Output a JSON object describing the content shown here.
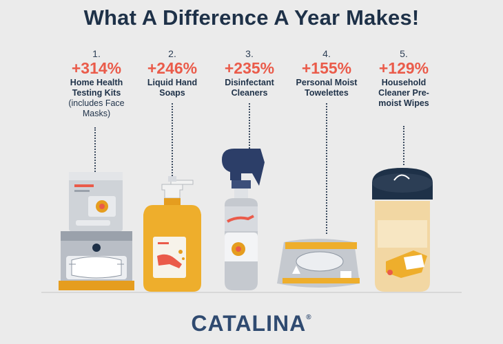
{
  "title": "What A Difference A Year Makes!",
  "items": [
    {
      "num": "1.",
      "pct": "+314%",
      "label": "Home Health Testing Kits",
      "sub": "(includes Face Masks)"
    },
    {
      "num": "2.",
      "pct": "+246%",
      "label": "Liquid Hand Soaps",
      "sub": ""
    },
    {
      "num": "3.",
      "pct": "+235%",
      "label": "Disinfectant Cleaners",
      "sub": ""
    },
    {
      "num": "4.",
      "pct": "+155%",
      "label": "Personal Moist Towelettes",
      "sub": ""
    },
    {
      "num": "5.",
      "pct": "+129%",
      "label": "Household Cleaner Pre-moist Wipes",
      "sub": ""
    }
  ],
  "brand": {
    "name": "CATALINA",
    "mark": "®"
  },
  "colors": {
    "accent": "#ea5b4a",
    "navy": "#1e3148",
    "background": "#ebebeb",
    "mustard": "#eeae2c"
  }
}
